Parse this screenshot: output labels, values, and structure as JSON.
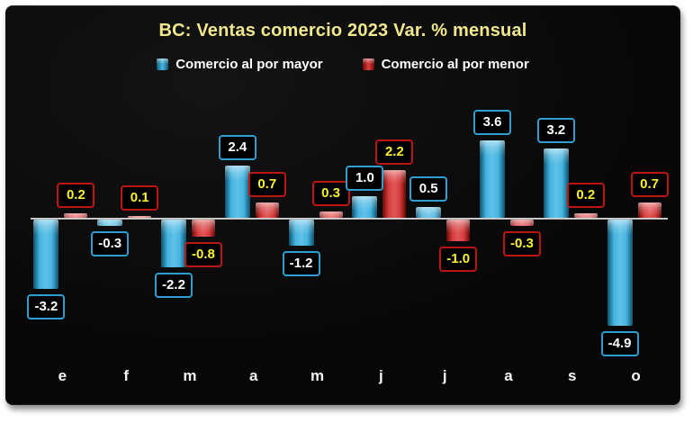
{
  "chart_data": {
    "type": "bar",
    "title": "BC: Ventas comercio 2023 Var. % mensual",
    "xlabel": "",
    "ylabel": "",
    "categories": [
      "e",
      "f",
      "m",
      "a",
      "m",
      "j",
      "j",
      "a",
      "s",
      "o"
    ],
    "series": [
      {
        "name": "Comercio al por mayor",
        "color": "#1CA5DB",
        "label_border_color": "#2F9FD2",
        "label_text_color": "#FFFFFF",
        "values": [
          -3.2,
          -0.3,
          -2.2,
          2.4,
          -1.2,
          1.0,
          0.5,
          3.6,
          3.2,
          -4.9
        ]
      },
      {
        "name": "Comercio al por menor",
        "color": "#CF1111",
        "label_border_color": "#BE1414",
        "label_text_color": "#FBF22F",
        "values": [
          0.2,
          0.1,
          -0.8,
          0.7,
          0.3,
          2.2,
          -1.0,
          -0.3,
          0.2,
          0.7
        ]
      }
    ],
    "ylim": [
      -5.5,
      4.5
    ],
    "grid": false,
    "value_labels": true,
    "value_label_decimals": 1,
    "legend_position": "top",
    "style": {
      "title_color": "#F1E88E",
      "background_color": "#070707",
      "axis_line_color": "#D9D9D9",
      "category_label_color": "#F5F5F5"
    }
  }
}
